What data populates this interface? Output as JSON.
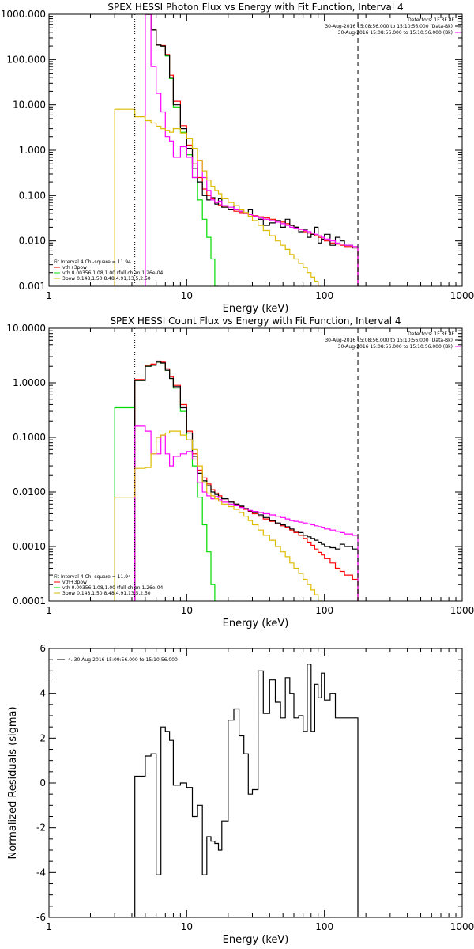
{
  "chart_data": [
    {
      "type": "line",
      "title": "SPEX HESSI Photon Flux vs Energy with Fit Function, Interval 4",
      "xlabel": "Energy (keV)",
      "ylabel": "",
      "xscale": "log",
      "yscale": "log",
      "xlim": [
        1,
        1000
      ],
      "ylim": [
        0.001,
        1000
      ],
      "x_ticks": [
        "1",
        "10",
        "100",
        "1000"
      ],
      "y_ticks": [
        "0.001",
        "0.010",
        "0.100",
        "1.000",
        "10.000",
        "100.000",
        "1000.000"
      ],
      "legend_top_right": {
        "header": "Detectors: 1F 3F 8F",
        "lines": [
          {
            "text": "30-Aug-2016 15:08:56.000 to 15:10:56.000 (Data-Bk)",
            "color": "#000000"
          },
          {
            "text": "30-Aug-2016 15:08:56.000 to 15:10:56.000 (Bk)",
            "color": "#ff00ff"
          }
        ]
      },
      "legend_bottom_left": {
        "header": "Fit Interval  4    Chi-square = 11.94",
        "lines": [
          {
            "text": "vth+3pow",
            "color": "#ff0000"
          },
          {
            "text": "vth 0.00356,1.08,1.00  (full chian 1.26e-04",
            "color": "#00dd00"
          },
          {
            "text": "3pow 0.148,1.50,8.48,4.91,13.5,2.50",
            "color": "#ddbb00"
          }
        ]
      },
      "marker_lines": [
        {
          "x": 4.2,
          "style": "dotted"
        },
        {
          "x": 175,
          "style": "dashed"
        }
      ],
      "x_edges": [
        3,
        4.2,
        5,
        5.5,
        6,
        6.5,
        7,
        7.5,
        8,
        9,
        10,
        11,
        12,
        13,
        14,
        15,
        16,
        17,
        18,
        20,
        22,
        24,
        26,
        28,
        30,
        33,
        36,
        40,
        44,
        48,
        52,
        56,
        60,
        65,
        70,
        75,
        80,
        85,
        90,
        95,
        100,
        110,
        120,
        130,
        140,
        160,
        175
      ],
      "series": [
        {
          "color": "#00dd00",
          "start": 2,
          "y": [
            1000,
            450,
            210,
            200,
            120,
            38,
            9,
            2.5,
            0.8,
            0.25,
            0.08,
            0.03,
            0.012,
            0.004,
            0.001
          ]
        },
        {
          "color": "#ff0000",
          "start": 2,
          "y": [
            1000,
            450,
            210,
            205,
            130,
            45,
            12,
            3.5,
            1.3,
            0.5,
            0.25,
            0.14,
            0.1,
            0.085,
            0.07,
            0.062,
            0.056,
            0.05,
            0.045,
            0.042,
            0.04,
            0.038,
            0.036,
            0.034,
            0.032,
            0.03,
            0.028,
            0.026,
            0.024,
            0.022,
            0.02,
            0.018,
            0.016,
            0.015,
            0.014,
            0.013,
            0.012,
            0.011,
            0.01,
            0.009,
            0.0085,
            0.008,
            0.0075,
            0.007
          ]
        },
        {
          "color": "#000000",
          "start": 2,
          "y": [
            1000,
            450,
            210,
            200,
            125,
            40,
            10,
            3,
            1.1,
            0.4,
            0.2,
            0.1,
            0.08,
            0.09,
            0.065,
            0.085,
            0.055,
            0.05,
            0.06,
            0.045,
            0.04,
            0.05,
            0.035,
            0.03,
            0.022,
            0.025,
            0.028,
            0.02,
            0.03,
            0.022,
            0.02,
            0.016,
            0.018,
            0.012,
            0.014,
            0.02,
            0.009,
            0.011,
            0.014,
            0.008,
            0.012,
            0.01,
            0.008,
            0.007
          ]
        },
        {
          "color": "#ff00ff",
          "start": 2,
          "y": [
            1000,
            70,
            18,
            7,
            2,
            1.6,
            0.7,
            1.2,
            0.7,
            0.25,
            0.6,
            0.25,
            0.13,
            0.08,
            0.07,
            0.075,
            0.06,
            0.055,
            0.05,
            0.045,
            0.04,
            0.038,
            0.035,
            0.032,
            0.03,
            0.028,
            0.026,
            0.024,
            0.022,
            0.02,
            0.019,
            0.018,
            0.017,
            0.016,
            0.015,
            0.014,
            0.013,
            0.012,
            0.011,
            0.01,
            0.009,
            0.0085,
            0.008,
            0.0075
          ]
        },
        {
          "color": "#ddbb00",
          "start": 0,
          "y": [
            8,
            5.5,
            4.5,
            4,
            3.4,
            3.0,
            2.7,
            2.5,
            3.0,
            2.4,
            1.8,
            1.1,
            0.6,
            0.35,
            0.22,
            0.16,
            0.13,
            0.11,
            0.085,
            0.07,
            0.06,
            0.05,
            0.042,
            0.035,
            0.028,
            0.022,
            0.017,
            0.013,
            0.01,
            0.008,
            0.0065,
            0.005,
            0.004,
            0.0032,
            0.0026,
            0.002,
            0.0016,
            0.0013,
            0.001
          ]
        }
      ]
    },
    {
      "type": "line",
      "title": "SPEX HESSI Count Flux vs Energy with Fit Function, Interval 4",
      "xlabel": "Energy (keV)",
      "ylabel": "",
      "xscale": "log",
      "yscale": "log",
      "xlim": [
        1,
        1000
      ],
      "ylim": [
        0.0001,
        10
      ],
      "x_ticks": [
        "1",
        "10",
        "100",
        "1000"
      ],
      "y_ticks": [
        "0.0001",
        "0.0010",
        "0.0100",
        "0.1000",
        "1.0000",
        "10.0000"
      ],
      "legend_top_right": {
        "header": "Detectors: 1F 3F 8F",
        "lines": [
          {
            "text": "30-Aug-2016 15:08:56.000 to 15:10:56.000 (Data-Bk)",
            "color": "#000000"
          },
          {
            "text": "30-Aug-2016 15:08:56.000 to 15:10:56.000 (Bk)",
            "color": "#ff00ff"
          }
        ]
      },
      "legend_bottom_left": {
        "header": "Fit Interval  4    Chi-square = 11.94",
        "lines": [
          {
            "text": "vth+3pow",
            "color": "#ff0000"
          },
          {
            "text": "vth 0.00356,1.08,1.00  (full chian 1.26e-04",
            "color": "#00dd00"
          },
          {
            "text": "3pow 0.148,1.50,8.48,4.91,13.5,2.50",
            "color": "#ddbb00"
          }
        ]
      },
      "marker_lines": [
        {
          "x": 4.2,
          "style": "dotted"
        },
        {
          "x": 175,
          "style": "dashed"
        }
      ],
      "x_edges": [
        3,
        4.2,
        5,
        5.5,
        6,
        6.5,
        7,
        7.5,
        8,
        9,
        10,
        11,
        12,
        13,
        14,
        15,
        16,
        17,
        18,
        20,
        22,
        24,
        26,
        28,
        30,
        33,
        36,
        40,
        44,
        48,
        52,
        56,
        60,
        65,
        70,
        75,
        80,
        85,
        90,
        95,
        100,
        110,
        120,
        130,
        140,
        160,
        175
      ],
      "series": [
        {
          "color": "#00dd00",
          "start": 0,
          "y": [
            0.35,
            1.1,
            2.0,
            2.1,
            2.4,
            2.3,
            1.7,
            1.2,
            0.8,
            0.3,
            0.09,
            0.03,
            0.008,
            0.0025,
            0.0008,
            0.0002
          ]
        },
        {
          "color": "#ff0000",
          "start": 1,
          "y": [
            1.15,
            2.1,
            2.2,
            2.5,
            2.4,
            1.8,
            1.3,
            0.9,
            0.4,
            0.13,
            0.05,
            0.025,
            0.018,
            0.014,
            0.011,
            0.0095,
            0.0085,
            0.0075,
            0.0068,
            0.006,
            0.0054,
            0.0048,
            0.0044,
            0.004,
            0.0036,
            0.0032,
            0.0029,
            0.0026,
            0.0024,
            0.0022,
            0.002,
            0.0018,
            0.0016,
            0.0014,
            0.0012,
            0.00105,
            0.0009,
            0.00078,
            0.0007,
            0.0006,
            0.0005,
            0.0004,
            0.00035,
            0.0003,
            0.00025
          ]
        },
        {
          "color": "#000000",
          "start": 1,
          "y": [
            1.1,
            2.0,
            2.1,
            2.4,
            2.3,
            1.7,
            1.2,
            0.85,
            0.35,
            0.12,
            0.045,
            0.022,
            0.016,
            0.013,
            0.01,
            0.009,
            0.008,
            0.0075,
            0.0065,
            0.006,
            0.0055,
            0.005,
            0.0045,
            0.0042,
            0.0038,
            0.0034,
            0.003,
            0.0027,
            0.0025,
            0.0023,
            0.0021,
            0.0019,
            0.0018,
            0.0016,
            0.0015,
            0.0014,
            0.0013,
            0.0012,
            0.0011,
            0.001,
            0.00095,
            0.0009,
            0.0011,
            0.001,
            0.0009
          ]
        },
        {
          "color": "#ff00ff",
          "start": 1,
          "y": [
            0.16,
            0.13,
            0.05,
            0.05,
            0.11,
            0.05,
            0.03,
            0.045,
            0.05,
            0.055,
            0.04,
            0.015,
            0.01,
            0.0085,
            0.0075,
            0.0082,
            0.0072,
            0.0065,
            0.006,
            0.0056,
            0.0052,
            0.0049,
            0.0046,
            0.0044,
            0.0042,
            0.004,
            0.0038,
            0.0036,
            0.0034,
            0.0032,
            0.003,
            0.0029,
            0.0028,
            0.0027,
            0.0026,
            0.0025,
            0.0024,
            0.0023,
            0.0022,
            0.0021,
            0.002,
            0.0019,
            0.0018,
            0.0017,
            0.0016
          ]
        },
        {
          "color": "#ddbb00",
          "start": 0,
          "y": [
            0.008,
            0.027,
            0.028,
            0.05,
            0.1,
            0.11,
            0.12,
            0.13,
            0.13,
            0.11,
            0.09,
            0.06,
            0.03,
            0.015,
            0.0095,
            0.0085,
            0.0075,
            0.0068,
            0.006,
            0.0054,
            0.0048,
            0.0042,
            0.0036,
            0.003,
            0.0025,
            0.002,
            0.0016,
            0.0013,
            0.001,
            0.0008,
            0.00065,
            0.0005,
            0.0004,
            0.00032,
            0.00025,
            0.0002,
            0.00016,
            0.00013,
            0.0001
          ]
        }
      ]
    },
    {
      "type": "line",
      "title": "",
      "xlabel": "Energy (keV)",
      "ylabel": "Normalized Residuals (sigma)",
      "xscale": "log",
      "yscale": "linear",
      "xlim": [
        1,
        1000
      ],
      "ylim": [
        -6,
        6
      ],
      "x_ticks": [
        "1",
        "10",
        "100",
        "1000"
      ],
      "y_ticks": [
        "-6",
        "-4",
        "-2",
        "0",
        "2",
        "4",
        "6"
      ],
      "legend_top_left": {
        "text": "4. 30-Aug-2016 15:09:56.000 to 15:10:56.000",
        "color": "#000000"
      },
      "x_edges": [
        4.2,
        5,
        5.5,
        6,
        6.5,
        7,
        7.5,
        8,
        9,
        10,
        11,
        12,
        13,
        14,
        15,
        16,
        17,
        18,
        20,
        22,
        24,
        26,
        28,
        30,
        33,
        36,
        40,
        44,
        48,
        52,
        56,
        60,
        65,
        70,
        75,
        80,
        85,
        90,
        95,
        100,
        110,
        120,
        130,
        140,
        160,
        175
      ],
      "series": [
        {
          "color": "#000000",
          "start": 0,
          "y": [
            0.3,
            1.2,
            1.3,
            -4.1,
            2.5,
            2.3,
            1.9,
            -0.1,
            0.0,
            -0.2,
            -1.5,
            -1.0,
            -4.1,
            -2.4,
            -2.6,
            -2.7,
            -3.0,
            -1.7,
            2.8,
            3.3,
            2.1,
            1.3,
            -0.5,
            -0.3,
            5.0,
            3.1,
            4.6,
            3.6,
            2.9,
            4.7,
            4.0,
            2.9,
            3.0,
            2.3,
            5.3,
            2.3,
            4.4,
            3.8,
            4.9,
            3.7,
            4.0,
            2.9,
            2.9,
            2.9,
            2.9
          ]
        }
      ]
    }
  ]
}
